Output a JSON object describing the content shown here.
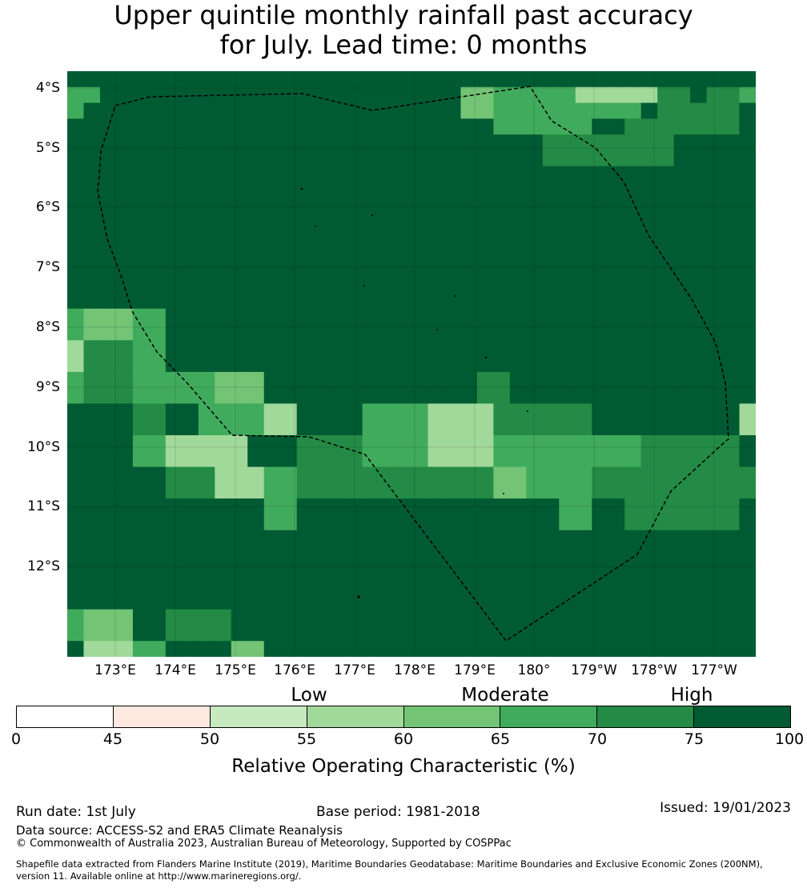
{
  "title_line1": "Upper quintile monthly rainfall past accuracy",
  "title_line2": "for July. Lead time: 0 months",
  "lat_labels": [
    "4°S",
    "5°S",
    "6°S",
    "7°S",
    "8°S",
    "9°S",
    "10°S",
    "11°S",
    "12°S"
  ],
  "lon_labels": [
    "173°E",
    "174°E",
    "175°E",
    "176°E",
    "177°E",
    "178°E",
    "179°E",
    "180°",
    "179°W",
    "178°W",
    "177°W"
  ],
  "categories": {
    "low": "Low",
    "moderate": "Moderate",
    "high": "High"
  },
  "colorbar": {
    "ticks": [
      "0",
      "45",
      "50",
      "55",
      "60",
      "65",
      "70",
      "75",
      "100"
    ],
    "bins": [
      {
        "from": 0,
        "to": 45,
        "color": "#ffffff"
      },
      {
        "from": 45,
        "to": 50,
        "color": "#fde9e0"
      },
      {
        "from": 50,
        "to": 55,
        "color": "#c7e9c0"
      },
      {
        "from": 55,
        "to": 60,
        "color": "#a1d99b"
      },
      {
        "from": 60,
        "to": 65,
        "color": "#74c476"
      },
      {
        "from": 65,
        "to": 70,
        "color": "#41ab5d"
      },
      {
        "from": 70,
        "to": 75,
        "color": "#238b45"
      },
      {
        "from": 75,
        "to": 100,
        "color": "#005a32"
      }
    ],
    "label": "Relative Operating Characteristic (%)"
  },
  "grid_legend": {
    "5": "#005a32",
    "4": "#238b45",
    "3": "#41ab5d",
    "2": "#74c476",
    "1": "#a1d99b",
    "0": "#c7e9c0"
  },
  "grid": [
    "555555555555555555555555555555555555555555",
    "335555555555555555555555223333311111445443",
    "355555555555555555555555223333333335444445",
    "555555555555555555555555553333335544444445",
    "555555555555555555555555555554444444455555",
    "555555555555555555555555555554444444455555",
    "555555555555555555555555555555555555555555",
    "555555555555555555555555555555555555555555",
    "555555555555555555555555555555555555555555",
    "555555555555555555555555555555555555555555",
    "555555555555555555555555555555555555555555",
    "555555555555555555555555555555555555555555",
    "555555555555555555555555555555555555555555",
    "555555555555555555555555555555555555555555",
    "555555555555555555555555555555555555555555",
    "322233555555555555555555555555555555555555",
    "322233555555555555555555555555555555555555",
    "144433555555555555555555555555555555555555",
    "144433555555555555555555555555555555555555",
    "344433333222555555555555544555555555555555",
    "344433333222555555555555544555555555555555",
    "555544553333115555333311114444445555555551",
    "555544553333115555333311114444445555555551",
    "555533111115554444333311113333333334444445",
    "555533111115554444333311113333333334444445",
    "555555444111334444444444442233334444444444",
    "555555444111334444444444442233334444444444",
    "555555555555335555555555555555335544444445",
    "555555555555335555555555555555335544444445",
    "555555555555555555555555555555555555555555",
    "555555555555555555555555555555555555555555",
    "555555555555555555555555555555555555555555",
    "555555555555555555555555555555555555555555",
    "555555555555555555555555555555555555555555",
    "322255444455555555555555555555555555555555",
    "322255444455555555555555555555555555555555",
    "511133555522555555555555555555555555555555"
  ],
  "footer": {
    "run_date": "Run date: 1st July",
    "base_period": "Base period: 1981-2018",
    "issued": "Issued: 19/01/2023",
    "data_source": "Data source: ACCESS-S2 and ERA5 Climate Reanalysis",
    "copyright": "© Commonwealth of Australia 2023, Australian Bureau of Meteorology, Supported by COSPPac",
    "shapefile_line1": "Shapefile data extracted from Flanders Marine Institute (2019), Maritime Boundaries Geodatabase: Maritime Boundaries and Exclusive Economic Zones (200NM),",
    "shapefile_line2": "version 11. Available online at http://www.marineregions.org/."
  }
}
